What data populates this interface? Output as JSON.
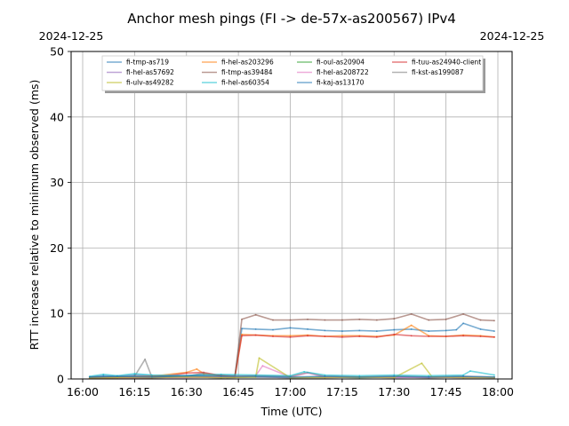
{
  "chart_data": {
    "type": "line",
    "title": "Anchor mesh pings (FI -> de-57x-as200567) IPv4",
    "date_left": "2024-12-25",
    "date_right": "2024-12-25",
    "xlabel": "Time (UTC)",
    "ylabel": "RTT increase relative to minimum observed (ms)",
    "xlim": [
      "16:00",
      "18:00"
    ],
    "ylim": [
      0,
      50
    ],
    "x_ticks": [
      "16:00",
      "16:15",
      "16:30",
      "16:45",
      "17:00",
      "17:15",
      "17:30",
      "17:45",
      "18:00"
    ],
    "y_ticks": [
      0,
      10,
      20,
      30,
      40,
      50
    ],
    "grid": true,
    "legend_position": "top-center",
    "legend_columns": 4,
    "series": [
      {
        "name": "fi-tmp-as719",
        "color": "#1f77b4",
        "x": [
          "16:02",
          "16:06",
          "16:10",
          "16:15",
          "16:20",
          "16:25",
          "16:30",
          "16:35",
          "16:40",
          "16:44",
          "16:46",
          "16:50",
          "16:55",
          "17:00",
          "17:05",
          "17:10",
          "17:15",
          "17:20",
          "17:25",
          "17:30",
          "17:35",
          "17:40",
          "17:45",
          "17:48",
          "17:50",
          "17:55",
          "17:59"
        ],
        "values": [
          0.3,
          0.5,
          0.4,
          0.6,
          0.5,
          0.4,
          0.5,
          0.7,
          0.6,
          0.5,
          7.7,
          7.6,
          7.5,
          7.8,
          7.6,
          7.4,
          7.3,
          7.4,
          7.3,
          7.5,
          7.6,
          7.3,
          7.4,
          7.5,
          8.5,
          7.6,
          7.3
        ]
      },
      {
        "name": "fi-hel-as203296",
        "color": "#ff7f0e",
        "x": [
          "16:02",
          "16:10",
          "16:20",
          "16:30",
          "16:33",
          "16:35",
          "16:40",
          "16:44",
          "16:46",
          "16:50",
          "16:55",
          "17:00",
          "17:05",
          "17:10",
          "17:15",
          "17:20",
          "17:25",
          "17:30",
          "17:35",
          "17:40",
          "17:45",
          "17:50",
          "17:55",
          "17:59"
        ],
        "values": [
          0.2,
          0.3,
          0.4,
          1.0,
          1.5,
          0.8,
          0.5,
          0.4,
          6.8,
          6.7,
          6.6,
          6.6,
          6.7,
          6.5,
          6.6,
          6.6,
          6.5,
          6.7,
          8.2,
          6.6,
          6.5,
          6.7,
          6.6,
          6.4
        ]
      },
      {
        "name": "fi-oul-as20904",
        "color": "#2ca02c",
        "x": [
          "16:02",
          "16:10",
          "16:20",
          "16:30",
          "16:40",
          "16:50",
          "17:00",
          "17:10",
          "17:20",
          "17:30",
          "17:40",
          "17:50",
          "17:59"
        ],
        "values": [
          0.2,
          0.3,
          0.2,
          0.3,
          0.2,
          0.3,
          0.2,
          0.3,
          0.2,
          0.3,
          0.2,
          0.3,
          0.2
        ]
      },
      {
        "name": "fi-tuu-as24940-client",
        "color": "#d62728",
        "x": [
          "16:02",
          "16:10",
          "16:20",
          "16:30",
          "16:35",
          "16:40",
          "16:44",
          "16:46",
          "16:50",
          "16:55",
          "17:00",
          "17:05",
          "17:10",
          "17:15",
          "17:20",
          "17:25",
          "17:30",
          "17:35",
          "17:40",
          "17:45",
          "17:50",
          "17:55",
          "17:59"
        ],
        "values": [
          0.1,
          0.2,
          0.2,
          0.9,
          1.0,
          0.5,
          0.3,
          6.6,
          6.7,
          6.5,
          6.4,
          6.6,
          6.5,
          6.4,
          6.5,
          6.4,
          6.8,
          6.6,
          6.5,
          6.5,
          6.6,
          6.5,
          6.4
        ]
      },
      {
        "name": "fi-hel-as57692",
        "color": "#9467bd",
        "x": [
          "16:02",
          "16:10",
          "16:20",
          "16:30",
          "16:40",
          "16:50",
          "17:00",
          "17:10",
          "17:20",
          "17:30",
          "17:40",
          "17:50",
          "17:59"
        ],
        "values": [
          0.1,
          0.2,
          0.2,
          0.3,
          0.2,
          0.3,
          0.2,
          0.2,
          0.3,
          0.2,
          0.3,
          0.2,
          0.2
        ]
      },
      {
        "name": "fi-tmp-as39484",
        "color": "#8c564b",
        "x": [
          "16:02",
          "16:10",
          "16:20",
          "16:30",
          "16:40",
          "16:44",
          "16:46",
          "16:50",
          "16:55",
          "17:00",
          "17:05",
          "17:10",
          "17:15",
          "17:20",
          "17:25",
          "17:30",
          "17:35",
          "17:40",
          "17:45",
          "17:50",
          "17:55",
          "17:59"
        ],
        "values": [
          0.3,
          0.3,
          0.4,
          0.5,
          0.4,
          0.3,
          9.1,
          9.8,
          9.0,
          9.0,
          9.1,
          9.0,
          9.0,
          9.1,
          9.0,
          9.2,
          9.9,
          9.0,
          9.1,
          9.9,
          9.0,
          8.9
        ]
      },
      {
        "name": "fi-hel-as208722",
        "color": "#e377c2",
        "x": [
          "16:02",
          "16:10",
          "16:20",
          "16:30",
          "16:40",
          "16:50",
          "16:52",
          "17:00",
          "17:05",
          "17:10",
          "17:20",
          "17:30",
          "17:40",
          "17:50",
          "17:59"
        ],
        "values": [
          0.1,
          0.2,
          0.2,
          0.2,
          0.3,
          0.5,
          2.0,
          0.3,
          0.9,
          0.3,
          0.3,
          0.3,
          0.2,
          0.3,
          0.2
        ]
      },
      {
        "name": "fi-kst-as199087",
        "color": "#7f7f7f",
        "x": [
          "16:02",
          "16:10",
          "16:15",
          "16:18",
          "16:20",
          "16:30",
          "16:35",
          "16:40",
          "16:50",
          "17:00",
          "17:05",
          "17:10",
          "17:20",
          "17:30",
          "17:40",
          "17:50",
          "17:59"
        ],
        "values": [
          0.2,
          0.3,
          0.4,
          3.0,
          0.3,
          0.4,
          0.9,
          0.4,
          0.5,
          0.4,
          1.0,
          0.4,
          0.3,
          0.4,
          0.3,
          0.4,
          0.3
        ]
      },
      {
        "name": "fi-ulv-as49282",
        "color": "#bcbd22",
        "x": [
          "16:02",
          "16:10",
          "16:20",
          "16:30",
          "16:40",
          "16:50",
          "16:51",
          "17:00",
          "17:10",
          "17:20",
          "17:30",
          "17:38",
          "17:41",
          "17:50",
          "17:59"
        ],
        "values": [
          0.1,
          0.2,
          0.2,
          0.3,
          0.2,
          0.3,
          3.2,
          0.2,
          0.2,
          0.3,
          0.2,
          2.4,
          0.3,
          0.2,
          0.2
        ]
      },
      {
        "name": "fi-hel-as60354",
        "color": "#17becf",
        "x": [
          "16:02",
          "16:06",
          "16:10",
          "16:15",
          "16:20",
          "16:30",
          "16:40",
          "16:50",
          "17:00",
          "17:04",
          "17:10",
          "17:20",
          "17:30",
          "17:40",
          "17:50",
          "17:52",
          "17:59"
        ],
        "values": [
          0.4,
          0.7,
          0.5,
          0.8,
          0.6,
          0.5,
          0.7,
          0.6,
          0.5,
          1.1,
          0.6,
          0.5,
          0.6,
          0.5,
          0.6,
          1.2,
          0.6
        ]
      },
      {
        "name": "fi-kaj-as13170",
        "color": "#1f77b4",
        "x": [
          "16:02",
          "16:10",
          "16:20",
          "16:30",
          "16:40",
          "16:50",
          "17:00",
          "17:10",
          "17:20",
          "17:30",
          "17:40",
          "17:50",
          "17:59"
        ],
        "values": [
          0.3,
          0.4,
          0.3,
          0.5,
          0.4,
          0.4,
          0.3,
          0.4,
          0.3,
          0.4,
          0.3,
          0.4,
          0.3
        ]
      }
    ]
  }
}
